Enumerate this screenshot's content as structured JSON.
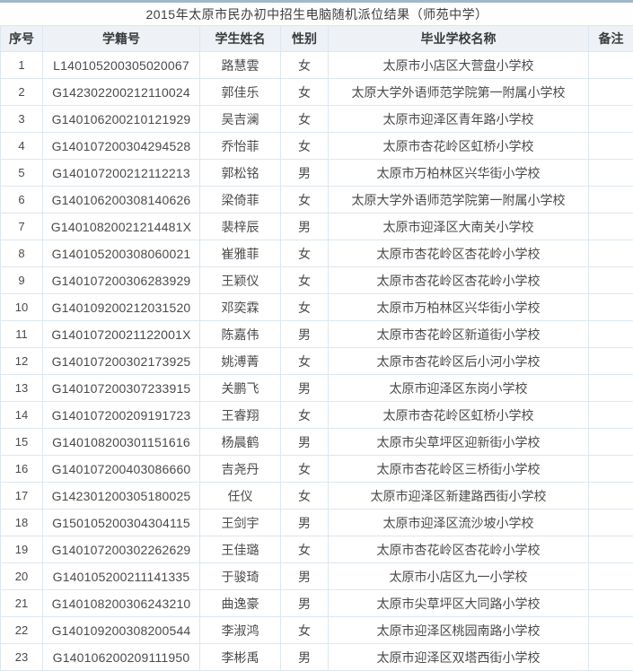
{
  "page": {
    "title": "2015年太原市民办初中招生电脑随机派位结果（师苑中学）"
  },
  "colors": {
    "top_border": "#a3b6cc",
    "header_bg": "#eef2f6",
    "cell_border": "#dde7f0",
    "text": "#4a4a4a"
  },
  "table": {
    "columns": [
      "序号",
      "学籍号",
      "学生姓名",
      "性别",
      "毕业学校名称",
      "备注"
    ],
    "rows": [
      {
        "no": "1",
        "id": "L140105200305020067",
        "name": "路慧雲",
        "gender": "女",
        "school": "太原市小店区大营盘小学校",
        "note": ""
      },
      {
        "no": "2",
        "id": "G142302200212110024",
        "name": "郭佳乐",
        "gender": "女",
        "school": "太原大学外语师范学院第一附属小学校",
        "note": ""
      },
      {
        "no": "3",
        "id": "G140106200210121929",
        "name": "吴吉澜",
        "gender": "女",
        "school": "太原市迎泽区青年路小学校",
        "note": ""
      },
      {
        "no": "4",
        "id": "G140107200304294528",
        "name": "乔怡菲",
        "gender": "女",
        "school": "太原市杏花岭区虹桥小学校",
        "note": ""
      },
      {
        "no": "5",
        "id": "G140107200212112213",
        "name": "郭松铭",
        "gender": "男",
        "school": "太原市万柏林区兴华街小学校",
        "note": ""
      },
      {
        "no": "6",
        "id": "G140106200308140626",
        "name": "梁倚菲",
        "gender": "女",
        "school": "太原大学外语师范学院第一附属小学校",
        "note": ""
      },
      {
        "no": "7",
        "id": "G14010820021214481X",
        "name": "裴梓辰",
        "gender": "男",
        "school": "太原市迎泽区大南关小学校",
        "note": ""
      },
      {
        "no": "8",
        "id": "G140105200308060021",
        "name": "崔雅菲",
        "gender": "女",
        "school": "太原市杏花岭区杏花岭小学校",
        "note": ""
      },
      {
        "no": "9",
        "id": "G140107200306283929",
        "name": "王颖仪",
        "gender": "女",
        "school": "太原市杏花岭区杏花岭小学校",
        "note": ""
      },
      {
        "no": "10",
        "id": "G140109200212031520",
        "name": "邓奕霖",
        "gender": "女",
        "school": "太原市万柏林区兴华街小学校",
        "note": ""
      },
      {
        "no": "11",
        "id": "G14010720021122001X",
        "name": "陈嘉伟",
        "gender": "男",
        "school": "太原市杏花岭区新道街小学校",
        "note": ""
      },
      {
        "no": "12",
        "id": "G140107200302173925",
        "name": "姚溥菁",
        "gender": "女",
        "school": "太原市杏花岭区后小河小学校",
        "note": ""
      },
      {
        "no": "13",
        "id": "G140107200307233915",
        "name": "关鹏飞",
        "gender": "男",
        "school": "太原市迎泽区东岗小学校",
        "note": ""
      },
      {
        "no": "14",
        "id": "G140107200209191723",
        "name": "王睿翔",
        "gender": "女",
        "school": "太原市杏花岭区虹桥小学校",
        "note": ""
      },
      {
        "no": "15",
        "id": "G140108200301151616",
        "name": "杨晨鹤",
        "gender": "男",
        "school": "太原市尖草坪区迎新街小学校",
        "note": ""
      },
      {
        "no": "16",
        "id": "G140107200403086660",
        "name": "吉尧丹",
        "gender": "女",
        "school": "太原市杏花岭区三桥街小学校",
        "note": ""
      },
      {
        "no": "17",
        "id": "G142301200305180025",
        "name": "任仪",
        "gender": "女",
        "school": "太原市迎泽区新建路西街小学校",
        "note": ""
      },
      {
        "no": "18",
        "id": "G150105200304304115",
        "name": "王剑宇",
        "gender": "男",
        "school": "太原市迎泽区流沙坡小学校",
        "note": ""
      },
      {
        "no": "19",
        "id": "G140107200302262629",
        "name": "王佳璐",
        "gender": "女",
        "school": "太原市杏花岭区杏花岭小学校",
        "note": ""
      },
      {
        "no": "20",
        "id": "G140105200211141335",
        "name": "于骏琦",
        "gender": "男",
        "school": "太原市小店区九一小学校",
        "note": ""
      },
      {
        "no": "21",
        "id": "G140108200306243210",
        "name": "曲逸豪",
        "gender": "男",
        "school": "太原市尖草坪区大同路小学校",
        "note": ""
      },
      {
        "no": "22",
        "id": "G140109200308200544",
        "name": "李淑鸿",
        "gender": "女",
        "school": "太原市迎泽区桃园南路小学校",
        "note": ""
      },
      {
        "no": "23",
        "id": "G140106200209111950",
        "name": "李彬禹",
        "gender": "男",
        "school": "太原市迎泽区双塔西街小学校",
        "note": ""
      }
    ]
  }
}
